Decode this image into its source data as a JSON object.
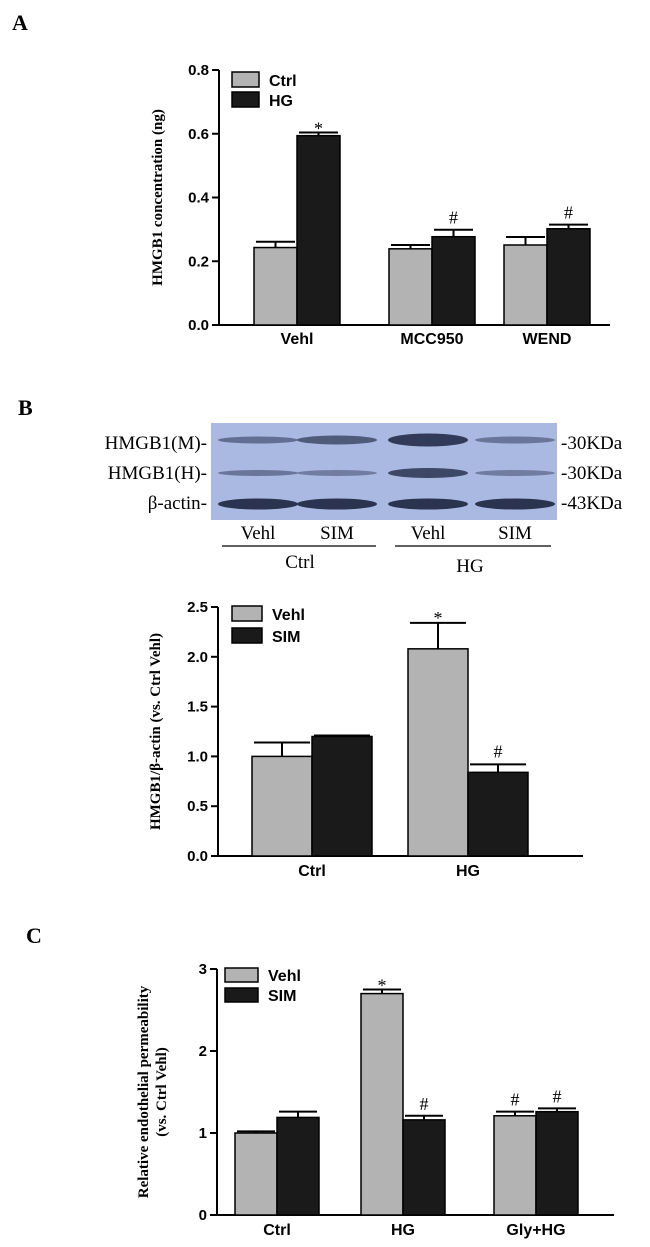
{
  "colors": {
    "ctrl": "#b3b3b3",
    "hg": "#1a1a1a",
    "blot_bg": "#a9b9e2",
    "band": "#2a3350"
  },
  "panels": {
    "a": {
      "letter": "A"
    },
    "b": {
      "letter": "B"
    },
    "c": {
      "letter": "C"
    }
  },
  "blot": {
    "rows": [
      {
        "label": "HMGB1(M)-",
        "kda": "-30KDa"
      },
      {
        "label": "HMGB1(H)-",
        "kda": "-30KDa"
      },
      {
        "label": "β-actin-",
        "kda": "-43KDa"
      }
    ],
    "lanes": [
      "Vehl",
      "SIM",
      "Vehl",
      "SIM"
    ],
    "groups": [
      "Ctrl",
      "HG"
    ]
  },
  "chart_data": [
    {
      "type": "bar",
      "ylabel": "HMGB1 concentration (ng)",
      "ylim": [
        0,
        0.8
      ],
      "yticks": [
        "0.0",
        "0.2",
        "0.4",
        "0.6",
        "0.8"
      ],
      "categories": [
        "Vehl",
        "MCC950",
        "WEND"
      ],
      "series": [
        {
          "name": "Ctrl",
          "values": [
            0.243,
            0.239,
            0.251
          ],
          "errors": [
            0.018,
            0.012,
            0.025
          ]
        },
        {
          "name": "HG",
          "values": [
            0.594,
            0.277,
            0.302
          ],
          "errors": [
            0.01,
            0.022,
            0.013
          ]
        }
      ],
      "annotations": [
        {
          "category": 0,
          "series": 1,
          "text": "*"
        },
        {
          "category": 1,
          "series": 1,
          "text": "#"
        },
        {
          "category": 2,
          "series": 1,
          "text": "#"
        }
      ],
      "legend": "top-left"
    },
    {
      "type": "bar",
      "ylabel": "HMGB1/β-actin (vs. Ctrl Vehl)",
      "ylim": [
        0,
        2.5
      ],
      "yticks": [
        "0.0",
        "0.5",
        "1.0",
        "1.5",
        "2.0",
        "2.5"
      ],
      "categories": [
        "Ctrl",
        "HG"
      ],
      "series": [
        {
          "name": "Vehl",
          "values": [
            1.0,
            2.08
          ],
          "errors": [
            0.14,
            0.26
          ]
        },
        {
          "name": "SIM",
          "values": [
            1.2,
            0.84
          ],
          "errors": [
            0.01,
            0.08
          ]
        }
      ],
      "annotations": [
        {
          "category": 1,
          "series": 0,
          "text": "*"
        },
        {
          "category": 1,
          "series": 1,
          "text": "#"
        }
      ],
      "legend": "top-left"
    },
    {
      "type": "bar",
      "ylabel": "Relative endothelial permeability (vs. Ctrl Vehl)",
      "ylim": [
        0,
        3
      ],
      "yticks": [
        "0",
        "1",
        "2",
        "3"
      ],
      "categories": [
        "Ctrl",
        "HG",
        "Gly+HG"
      ],
      "series": [
        {
          "name": "Vehl",
          "values": [
            1.0,
            2.7,
            1.21
          ],
          "errors": [
            0.02,
            0.05,
            0.05
          ]
        },
        {
          "name": "SIM",
          "values": [
            1.19,
            1.16,
            1.26
          ],
          "errors": [
            0.07,
            0.05,
            0.04
          ]
        }
      ],
      "annotations": [
        {
          "category": 1,
          "series": 0,
          "text": "*"
        },
        {
          "category": 1,
          "series": 1,
          "text": "#"
        },
        {
          "category": 2,
          "series": 0,
          "text": "#"
        },
        {
          "category": 2,
          "series": 1,
          "text": "#"
        }
      ],
      "legend": "top-left"
    }
  ]
}
